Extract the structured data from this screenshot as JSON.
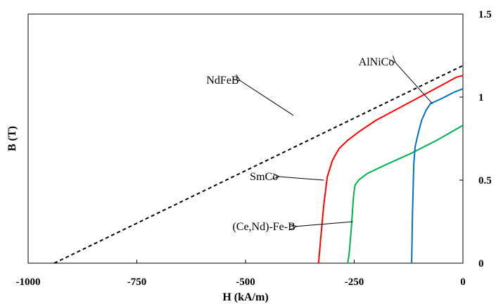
{
  "chart_data": {
    "type": "line",
    "title": "",
    "xlabel": "H (kA/m)",
    "ylabel": "B (T)",
    "xlim": [
      -1000,
      0
    ],
    "ylim": [
      0,
      1.5
    ],
    "x_ticks": [
      "-1000",
      "-750",
      "-500",
      "-250",
      "0"
    ],
    "y_ticks": [
      "0",
      "0.5",
      "1",
      "1.5"
    ],
    "y_axis_side": "right",
    "grid": false,
    "legend": "none (direct annotations)",
    "series": [
      {
        "name": "NdFeB",
        "color": "#000000",
        "dash": "dashed",
        "points": [
          [
            -940,
            0
          ],
          [
            0,
            1.19
          ]
        ]
      },
      {
        "name": "SmCo",
        "color": "#ff0000",
        "dash": "solid",
        "points": [
          [
            -332,
            0
          ],
          [
            -327,
            0.15
          ],
          [
            -320,
            0.35
          ],
          [
            -312,
            0.52
          ],
          [
            -300,
            0.62
          ],
          [
            -285,
            0.69
          ],
          [
            -265,
            0.74
          ],
          [
            -240,
            0.79
          ],
          [
            -200,
            0.86
          ],
          [
            -150,
            0.93
          ],
          [
            -100,
            1.0
          ],
          [
            -50,
            1.07
          ],
          [
            -15,
            1.12
          ],
          [
            0,
            1.13
          ]
        ]
      },
      {
        "name": "(Ce,Nd)-Fe-B",
        "color": "#00b050",
        "dash": "solid",
        "points": [
          [
            -265,
            0
          ],
          [
            -262,
            0.05
          ],
          [
            -257,
            0.2
          ],
          [
            -253,
            0.35
          ],
          [
            -251,
            0.42
          ],
          [
            -248,
            0.47
          ],
          [
            -240,
            0.5
          ],
          [
            -220,
            0.54
          ],
          [
            -180,
            0.59
          ],
          [
            -120,
            0.66
          ],
          [
            -60,
            0.74
          ],
          [
            0,
            0.83
          ]
        ]
      },
      {
        "name": "AlNiCo",
        "color": "#0070c0",
        "dash": "solid",
        "points": [
          [
            -118,
            0
          ],
          [
            -116,
            0.3
          ],
          [
            -113,
            0.6
          ],
          [
            -110,
            0.7
          ],
          [
            -103,
            0.78
          ],
          [
            -95,
            0.86
          ],
          [
            -85,
            0.92
          ],
          [
            -75,
            0.96
          ],
          [
            -50,
            0.99
          ],
          [
            -20,
            1.03
          ],
          [
            0,
            1.05
          ]
        ]
      }
    ],
    "annotations": [
      {
        "text": "AlNiCo",
        "text_at": [
          -240,
          1.19
        ],
        "arrow_to": [
          -70,
          0.96
        ]
      },
      {
        "text": "NdFeB",
        "text_at": [
          -590,
          1.08
        ],
        "arrow_to": [
          -390,
          0.89
        ]
      },
      {
        "text": "SmCo",
        "text_at": [
          -490,
          0.5
        ],
        "arrow_to": [
          -320,
          0.5
        ]
      },
      {
        "text": "(Ce,Nd)-Fe-B",
        "text_at": [
          -530,
          0.2
        ],
        "arrow_to": [
          -253,
          0.25
        ]
      }
    ]
  }
}
